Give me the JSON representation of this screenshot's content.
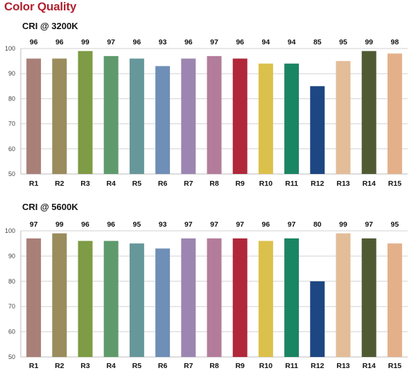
{
  "page_title": "Color Quality",
  "colors": [
    "#a98078",
    "#9a8c5c",
    "#7e9b45",
    "#5f9a6d",
    "#66979a",
    "#6f8fb7",
    "#9c86b1",
    "#b47c9b",
    "#b0283a",
    "#dcc04c",
    "#1a8563",
    "#1d4682",
    "#e3bd98",
    "#4f5a33",
    "#e4b08a"
  ],
  "chart_data": [
    {
      "type": "bar",
      "title": "CRI @ 3200K",
      "categories": [
        "R1",
        "R2",
        "R3",
        "R4",
        "R5",
        "R6",
        "R7",
        "R8",
        "R9",
        "R10",
        "R11",
        "R12",
        "R13",
        "R14",
        "R15"
      ],
      "values": [
        96,
        96,
        99,
        97,
        96,
        93,
        96,
        97,
        96,
        94,
        94,
        85,
        95,
        99,
        98
      ],
      "yticks": [
        50,
        60,
        70,
        80,
        90,
        100
      ],
      "ylim": [
        50,
        100
      ],
      "grid": true
    },
    {
      "type": "bar",
      "title": "CRI @ 5600K",
      "categories": [
        "R1",
        "R2",
        "R3",
        "R4",
        "R5",
        "R6",
        "R7",
        "R8",
        "R9",
        "R10",
        "R11",
        "R12",
        "R13",
        "R14",
        "R15"
      ],
      "values": [
        97,
        99,
        96,
        96,
        95,
        93,
        97,
        97,
        97,
        96,
        97,
        80,
        99,
        97,
        95
      ],
      "yticks": [
        50,
        60,
        70,
        80,
        90,
        100
      ],
      "ylim": [
        50,
        100
      ],
      "grid": true
    }
  ]
}
